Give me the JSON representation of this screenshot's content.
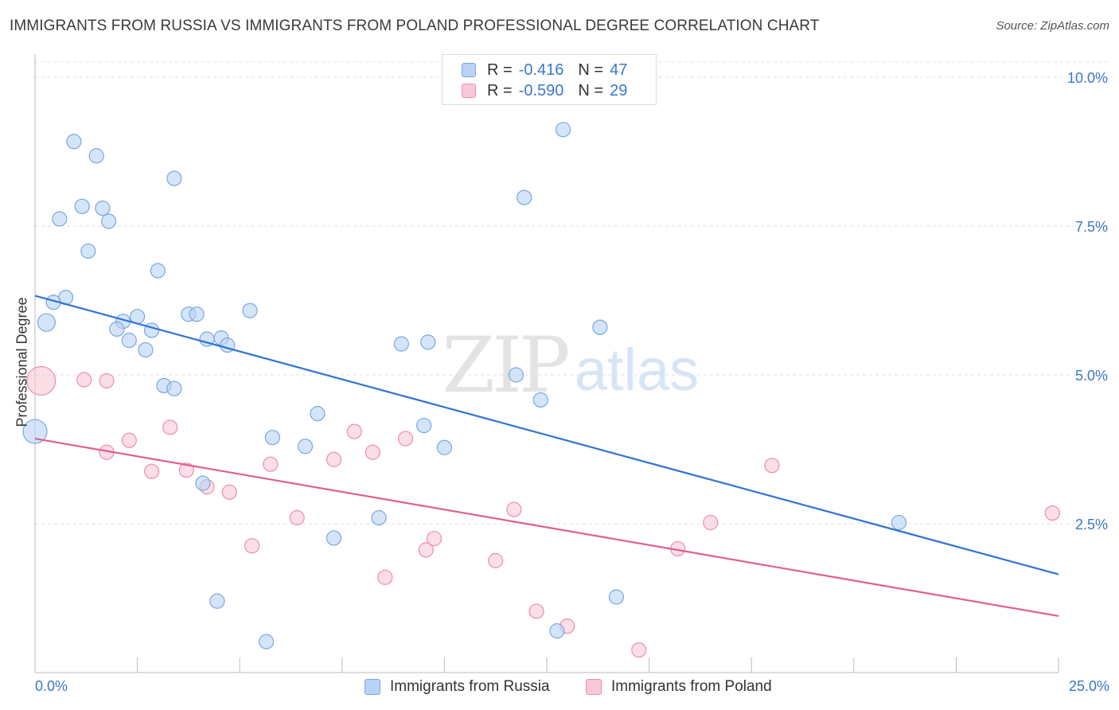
{
  "title": "IMMIGRANTS FROM RUSSIA VS IMMIGRANTS FROM POLAND PROFESSIONAL DEGREE CORRELATION CHART",
  "source": "Source: ZipAtlas.com",
  "watermark": {
    "zip": "ZIP",
    "atlas": "atlas"
  },
  "legend_top": {
    "rows": [
      {
        "r_label": "R =",
        "r_value": "-0.416",
        "n_label": "N =",
        "n_value": "47",
        "color": "#b8d3f5",
        "stroke": "#7aa6e0"
      },
      {
        "r_label": "R =",
        "r_value": "-0.590",
        "n_label": "N =",
        "n_value": "29",
        "color": "#f9c8d6",
        "stroke": "#ec8fab"
      }
    ]
  },
  "legend_bottom": [
    {
      "label": "Immigrants from Russia",
      "color": "#b8d3f5",
      "stroke": "#7aa6e0"
    },
    {
      "label": "Immigrants from Poland",
      "color": "#f9c8d6",
      "stroke": "#ec8fab"
    }
  ],
  "chart_data": {
    "type": "scatter",
    "title": "IMMIGRANTS FROM RUSSIA VS IMMIGRANTS FROM POLAND PROFESSIONAL DEGREE CORRELATION CHART",
    "xlabel": "",
    "ylabel": "Professional Degree",
    "xlim": [
      0,
      25
    ],
    "ylim": [
      0,
      10.5
    ],
    "x_tick_labels": [
      "0.0%",
      "25.0%"
    ],
    "y_ticks": [
      2.5,
      5.0,
      7.5,
      10.0
    ],
    "y_tick_labels": [
      "2.5%",
      "5.0%",
      "7.5%",
      "10.0%"
    ],
    "grid": true,
    "series": [
      {
        "name": "Immigrants from Russia",
        "color": "#b8d3f5",
        "stroke": "#7aa6e0",
        "line_color": "#2f74d0",
        "trend": [
          [
            0,
            6.33
          ],
          [
            25,
            1.65
          ]
        ],
        "points": [
          [
            0.95,
            8.92,
            9
          ],
          [
            1.5,
            8.68,
            9
          ],
          [
            3.4,
            8.3,
            9
          ],
          [
            1.15,
            7.83,
            9
          ],
          [
            1.65,
            7.8,
            9
          ],
          [
            0.6,
            7.62,
            9
          ],
          [
            1.8,
            7.58,
            9
          ],
          [
            1.3,
            7.08,
            9
          ],
          [
            3.0,
            6.75,
            9
          ],
          [
            0.75,
            6.3,
            9
          ],
          [
            0.45,
            6.22,
            9
          ],
          [
            0.28,
            5.88,
            11
          ],
          [
            2.5,
            5.98,
            9
          ],
          [
            2.15,
            5.9,
            9
          ],
          [
            3.75,
            6.02,
            9
          ],
          [
            3.95,
            6.02,
            9
          ],
          [
            5.25,
            6.08,
            9
          ],
          [
            2.0,
            5.77,
            9
          ],
          [
            2.85,
            5.75,
            9
          ],
          [
            2.3,
            5.58,
            9
          ],
          [
            4.2,
            5.6,
            9
          ],
          [
            4.55,
            5.62,
            9
          ],
          [
            4.7,
            5.5,
            9
          ],
          [
            2.7,
            5.42,
            9
          ],
          [
            8.95,
            5.52,
            9
          ],
          [
            9.6,
            5.55,
            9
          ],
          [
            3.15,
            4.82,
            9
          ],
          [
            3.4,
            4.77,
            9
          ],
          [
            11.75,
            5.0,
            9
          ],
          [
            12.9,
            9.12,
            9
          ],
          [
            11.95,
            7.98,
            9
          ],
          [
            13.8,
            5.8,
            9
          ],
          [
            12.35,
            4.58,
            9
          ],
          [
            0.0,
            4.05,
            15
          ],
          [
            6.9,
            4.35,
            9
          ],
          [
            9.5,
            4.15,
            9
          ],
          [
            5.8,
            3.95,
            9
          ],
          [
            6.6,
            3.8,
            9
          ],
          [
            10.0,
            3.78,
            9
          ],
          [
            4.1,
            3.18,
            9
          ],
          [
            8.4,
            2.6,
            9
          ],
          [
            7.3,
            2.26,
            9
          ],
          [
            21.1,
            2.52,
            9
          ],
          [
            4.45,
            1.2,
            9
          ],
          [
            14.2,
            1.27,
            9
          ],
          [
            5.65,
            0.52,
            9
          ],
          [
            12.75,
            0.7,
            9
          ]
        ]
      },
      {
        "name": "Immigrants from Poland",
        "color": "#f9c8d6",
        "stroke": "#ec8fab",
        "line_color": "#e0608e",
        "trend": [
          [
            0,
            3.93
          ],
          [
            25,
            0.95
          ]
        ],
        "points": [
          [
            0.15,
            4.9,
            18
          ],
          [
            1.2,
            4.92,
            9
          ],
          [
            1.75,
            4.9,
            9
          ],
          [
            3.3,
            4.12,
            9
          ],
          [
            2.3,
            3.9,
            9
          ],
          [
            1.75,
            3.7,
            9
          ],
          [
            2.85,
            3.38,
            9
          ],
          [
            3.7,
            3.4,
            9
          ],
          [
            4.2,
            3.12,
            9
          ],
          [
            4.75,
            3.03,
            9
          ],
          [
            5.75,
            3.5,
            9
          ],
          [
            7.3,
            3.58,
            9
          ],
          [
            7.8,
            4.05,
            9
          ],
          [
            8.25,
            3.7,
            9
          ],
          [
            9.05,
            3.93,
            9
          ],
          [
            6.4,
            2.6,
            9
          ],
          [
            5.3,
            2.13,
            9
          ],
          [
            8.55,
            1.6,
            9
          ],
          [
            9.55,
            2.06,
            9
          ],
          [
            9.75,
            2.25,
            9
          ],
          [
            11.25,
            1.88,
            9
          ],
          [
            11.7,
            2.74,
            9
          ],
          [
            12.25,
            1.03,
            9
          ],
          [
            13.0,
            0.78,
            9
          ],
          [
            15.7,
            2.08,
            9
          ],
          [
            16.5,
            2.52,
            9
          ],
          [
            18.0,
            3.48,
            9
          ],
          [
            24.85,
            2.68,
            9
          ],
          [
            14.75,
            0.38,
            9
          ]
        ]
      }
    ]
  }
}
